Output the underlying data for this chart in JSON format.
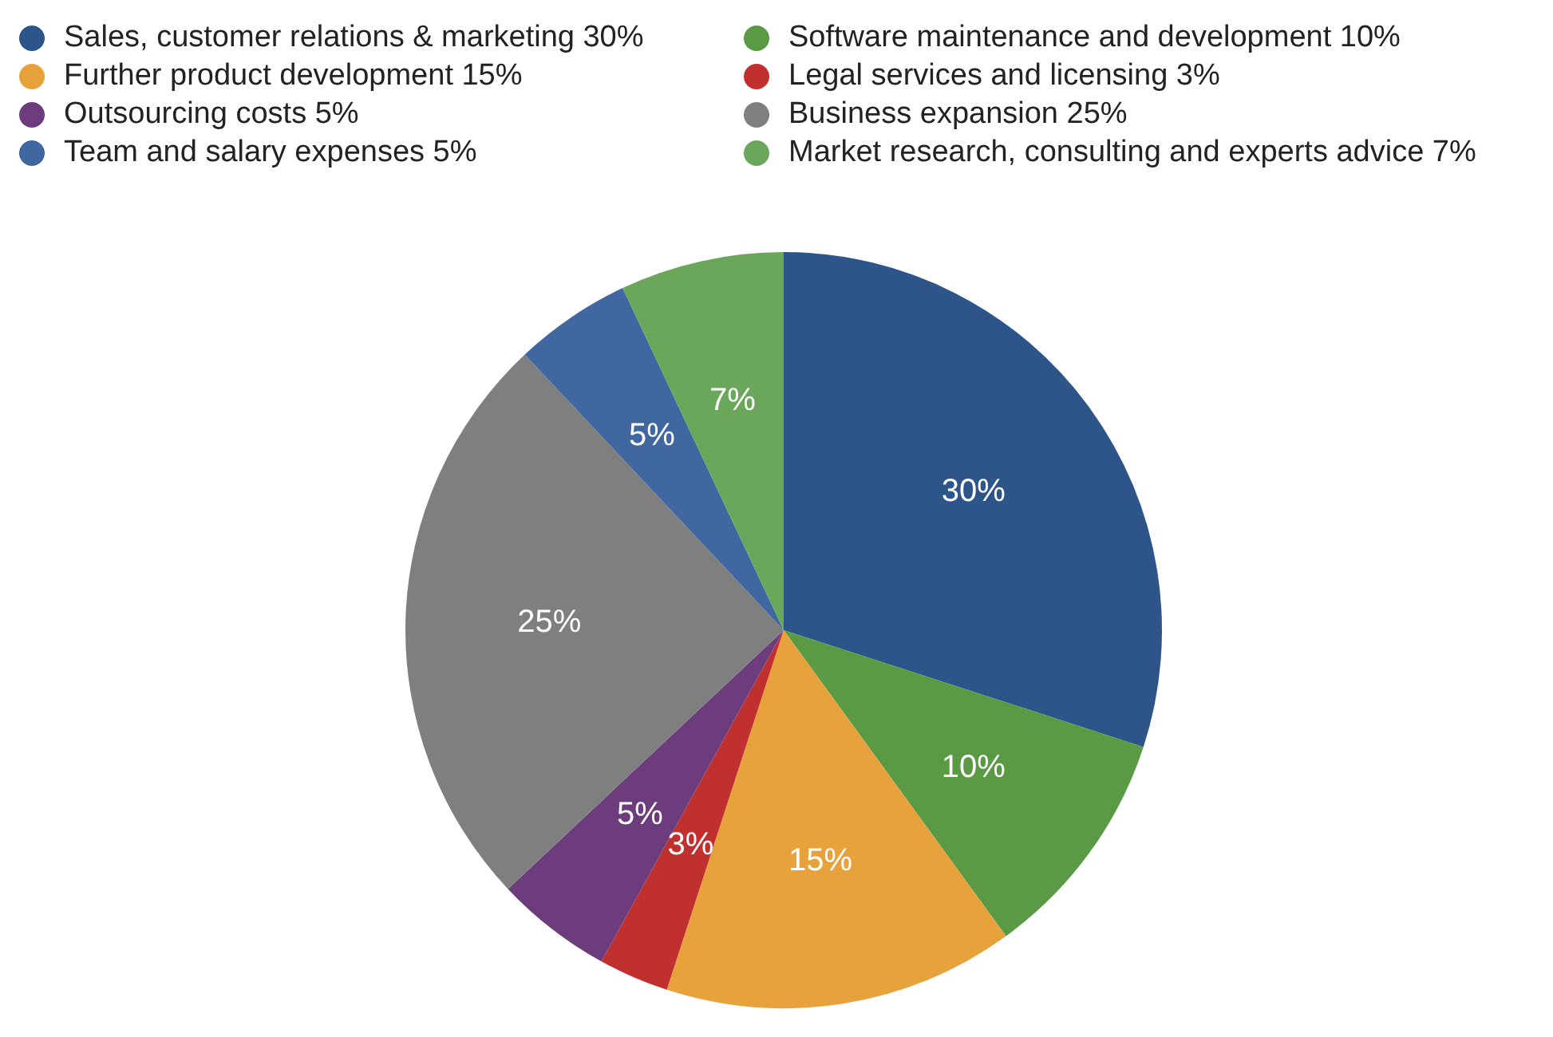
{
  "chart_data": {
    "type": "pie",
    "categories": [
      "Sales, customer relations & marketing 30%",
      "Software maintenance and development 10%",
      "Further product development 15%",
      "Legal services and licensing 3%",
      "Outsourcing costs 5%",
      "Business expansion 25%",
      "Team and salary expenses 5%",
      "Market research, consulting and experts advice 7%"
    ],
    "values": [
      30,
      10,
      15,
      3,
      5,
      25,
      5,
      7
    ],
    "colors": [
      "#2e5589",
      "#5a9a45",
      "#e8a23c",
      "#c0302e",
      "#6c3c7c",
      "#7f7f7f",
      "#40679f",
      "#6aa75a"
    ],
    "value_labels": [
      "30%",
      "10%",
      "15%",
      "3%",
      "5%",
      "25%",
      "5%",
      "7%"
    ],
    "legend": "top"
  }
}
